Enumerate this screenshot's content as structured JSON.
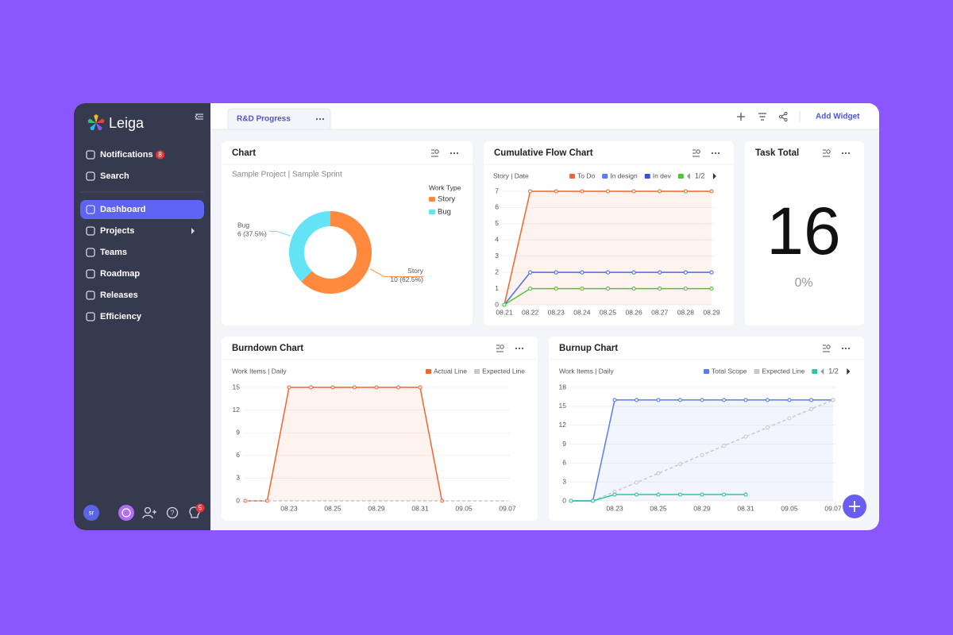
{
  "app": {
    "logo": "Leiga",
    "nav_top": [
      {
        "label": "Notifications",
        "badge": 8
      },
      {
        "label": "Search"
      }
    ],
    "nav": [
      "Dashboard",
      "Projects",
      "Teams",
      "Roadmap",
      "Releases",
      "Efficiency"
    ],
    "avatar": "sr",
    "help_badge": 5,
    "tab": "R&D Progress",
    "add_widget": "Add Widget"
  },
  "chart_data": [
    {
      "type": "pie",
      "title": "Chart",
      "subtitle": "Sample Project | Sample Sprint",
      "legend_title": "Work Type",
      "categories": [
        "Story",
        "Bug"
      ],
      "values": [
        10,
        6
      ],
      "value_labels": [
        "10 (62.5%)",
        "6 (37.5%)"
      ],
      "colors": [
        "#ff8a3d",
        "#62e3f6"
      ],
      "donut": true
    },
    {
      "type": "line",
      "title": "Cumulative Flow Chart",
      "subtitle": "Story | Date",
      "legend_page": "1/2",
      "categories": [
        "08.21",
        "08.22",
        "08.23",
        "08.24",
        "08.25",
        "08.26",
        "08.27",
        "08.28",
        "08.29"
      ],
      "series": [
        {
          "name": "To Do",
          "color": "#f4642f",
          "area": true,
          "values": [
            0,
            7,
            7,
            7,
            7,
            7,
            7,
            7,
            7
          ]
        },
        {
          "name": "In design",
          "color": "#5b7cf0",
          "values": [
            0,
            2,
            2,
            2,
            2,
            2,
            2,
            2,
            2
          ]
        },
        {
          "name": "In dev",
          "color": "#3d4fd8",
          "hidden": true,
          "values": [
            0,
            2,
            2,
            2,
            2,
            2,
            2,
            2,
            2
          ]
        },
        {
          "color": "#4cc53a",
          "values": [
            0,
            1,
            1,
            1,
            1,
            1,
            1,
            1,
            1
          ]
        }
      ],
      "ylim": [
        0,
        7
      ],
      "yticks": [
        0,
        1,
        2,
        3,
        4,
        5,
        6,
        7
      ],
      "grid": true
    },
    {
      "type": "stat",
      "title": "Task Total",
      "value": 16,
      "percent": {
        "value": 0,
        "label": "0%"
      }
    },
    {
      "type": "line",
      "title": "Burndown Chart",
      "subtitle": "Work Items | Daily",
      "categories": [
        null,
        null,
        "08.23",
        null,
        "08.25",
        null,
        "08.29",
        null,
        "08.31",
        null,
        "09.05",
        null,
        "09.07"
      ],
      "series": [
        {
          "name": "Actual Line",
          "color": "#f4642f",
          "area": true,
          "values": [
            0,
            0,
            15,
            15,
            15,
            15,
            15,
            15,
            15,
            0,
            null,
            null,
            null
          ]
        },
        {
          "name": "Expected Line",
          "color": "#c8c8c8",
          "dashed": true,
          "markers": false,
          "values": [
            0,
            0,
            0,
            0,
            0,
            0,
            0,
            0,
            0,
            0,
            0,
            0,
            0
          ]
        }
      ],
      "ylim": [
        0,
        15
      ],
      "yticks": [
        0,
        3,
        6,
        9,
        12,
        15
      ],
      "grid": true
    },
    {
      "type": "line",
      "title": "Burnup Chart",
      "subtitle": "Work Items | Daily",
      "legend_page": "1/2",
      "categories": [
        null,
        null,
        "08.23",
        null,
        "08.25",
        null,
        "08.29",
        null,
        "08.31",
        null,
        "09.05",
        null,
        "09.07"
      ],
      "series": [
        {
          "name": "Total Scope",
          "color": "#5b7cf0",
          "area": true,
          "values": [
            0,
            0,
            16,
            16,
            16,
            16,
            16,
            16,
            16,
            16,
            16,
            16,
            16
          ]
        },
        {
          "name": "Expected Line",
          "color": "#c8c8c8",
          "dashed": true,
          "values": [
            null,
            0,
            1.45,
            2.91,
            4.36,
            5.82,
            7.27,
            8.73,
            10.18,
            11.64,
            13.09,
            14.55,
            16
          ]
        },
        {
          "color": "#2fc4a0",
          "values": [
            0,
            0,
            1,
            1,
            1,
            1,
            1,
            1,
            1,
            null,
            null,
            null,
            null
          ]
        }
      ],
      "ylim": [
        0,
        18
      ],
      "yticks": [
        0,
        3,
        6,
        9,
        12,
        15,
        18
      ],
      "grid": true
    }
  ]
}
